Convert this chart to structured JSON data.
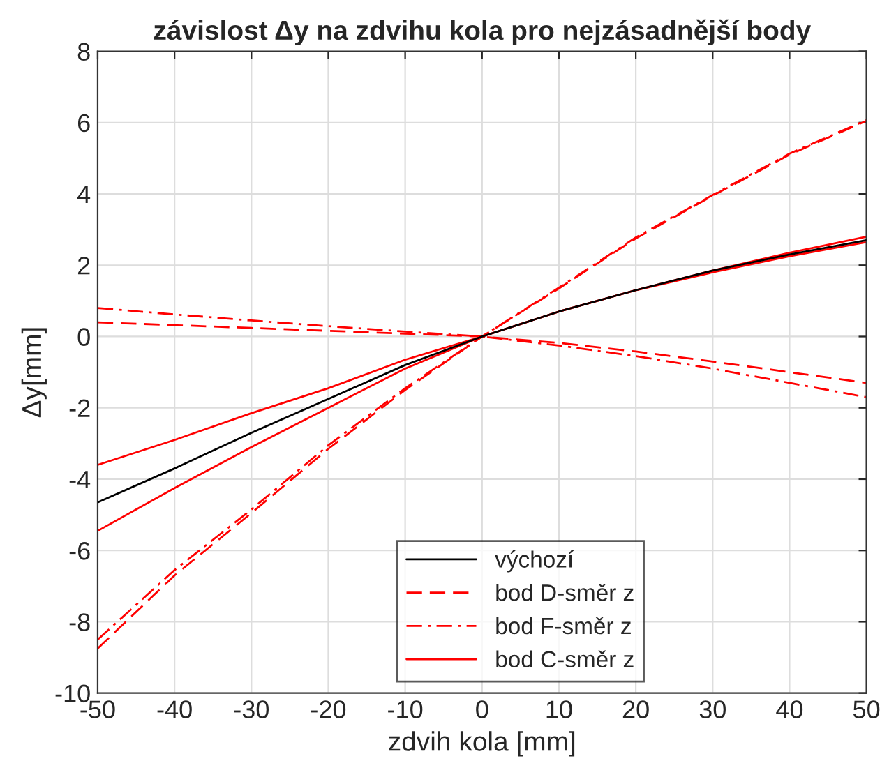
{
  "chart_data": {
    "type": "line",
    "title": "závislost Δy na zdvihu kola pro nejzásadnější body",
    "xlabel": "zdvih kola [mm]",
    "ylabel": "Δy[mm]",
    "x": [
      -50,
      -40,
      -30,
      -20,
      -10,
      0,
      10,
      20,
      30,
      40,
      50
    ],
    "series": [
      {
        "name": "výchozí",
        "color": "#000000",
        "line_style": "solid",
        "values": [
          -4.65,
          -3.7,
          -2.7,
          -1.75,
          -0.8,
          0,
          0.7,
          1.3,
          1.85,
          2.3,
          2.7
        ]
      },
      {
        "name": "bod D-směr z",
        "color": "#ff0000",
        "line_style": "dashed",
        "values": [
          -8.75,
          -6.7,
          -4.95,
          -3.15,
          -1.5,
          0,
          1.35,
          2.75,
          3.95,
          5.1,
          6.05
        ]
      },
      {
        "name": "bod F-směr z",
        "color": "#ff0000",
        "line_style": "dashdot",
        "values": [
          -8.5,
          -6.55,
          -4.85,
          -3.05,
          -1.45,
          0,
          1.37,
          2.78,
          3.97,
          5.13,
          6.07
        ]
      },
      {
        "name": "bod C-směr z",
        "color": "#ff0000",
        "line_style": "solid",
        "values": [
          -3.6,
          -2.9,
          -2.15,
          -1.45,
          -0.65,
          0,
          0.7,
          1.3,
          1.85,
          2.35,
          2.8
        ]
      },
      {
        "color": "#ff0000",
        "line_style": "dashed",
        "values": [
          0.4,
          0.32,
          0.24,
          0.16,
          0.08,
          0,
          -0.18,
          -0.42,
          -0.7,
          -1.0,
          -1.3
        ]
      },
      {
        "color": "#ff0000",
        "line_style": "dashdot",
        "values": [
          0.8,
          0.62,
          0.45,
          0.29,
          0.14,
          0,
          -0.25,
          -0.55,
          -0.9,
          -1.3,
          -1.7
        ]
      },
      {
        "color": "#ff0000",
        "line_style": "solid",
        "values": [
          -5.45,
          -4.25,
          -3.1,
          -2.0,
          -0.9,
          0,
          0.7,
          1.3,
          1.8,
          2.25,
          2.65
        ]
      }
    ],
    "xlim": [
      -50,
      50
    ],
    "xticks": [
      -50,
      -40,
      -30,
      -20,
      -10,
      0,
      10,
      20,
      30,
      40,
      50
    ],
    "ylim": [
      -10,
      8
    ],
    "yticks": [
      -10,
      -8,
      -6,
      -4,
      -2,
      0,
      2,
      4,
      6,
      8
    ],
    "grid": true,
    "legend": "bottom",
    "marker": "none"
  }
}
